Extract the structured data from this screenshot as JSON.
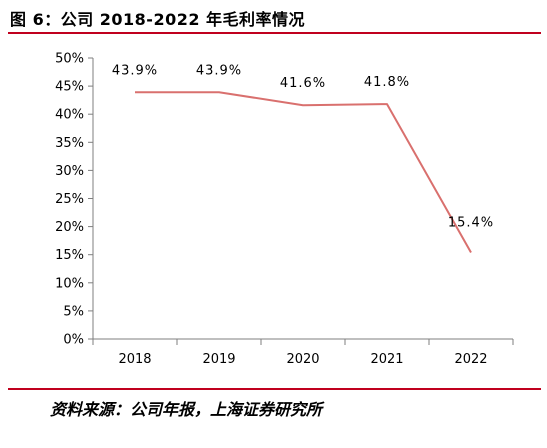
{
  "header": {
    "title": "图 6：公司 2018-2022 年毛利率情况"
  },
  "footer": {
    "source": "资料来源：公司年报，上海证券研究所"
  },
  "colors": {
    "line": "#d9706e",
    "rule": "#c0001e",
    "axis": "#7f7f7f"
  },
  "chart_data": {
    "type": "line",
    "title": "",
    "xlabel": "",
    "ylabel": "",
    "categories": [
      "2018",
      "2019",
      "2020",
      "2021",
      "2022"
    ],
    "series": [
      {
        "values": [
          43.9,
          43.9,
          41.6,
          41.8,
          15.4
        ],
        "labels": [
          "43.9%",
          "43.9%",
          "41.6%",
          "41.8%",
          "15.4%"
        ]
      }
    ],
    "ylim": [
      0,
      50
    ],
    "yticks": [
      "0%",
      "5%",
      "10%",
      "15%",
      "20%",
      "25%",
      "30%",
      "35%",
      "40%",
      "45%",
      "50%"
    ],
    "grid": false,
    "legend": "none"
  }
}
